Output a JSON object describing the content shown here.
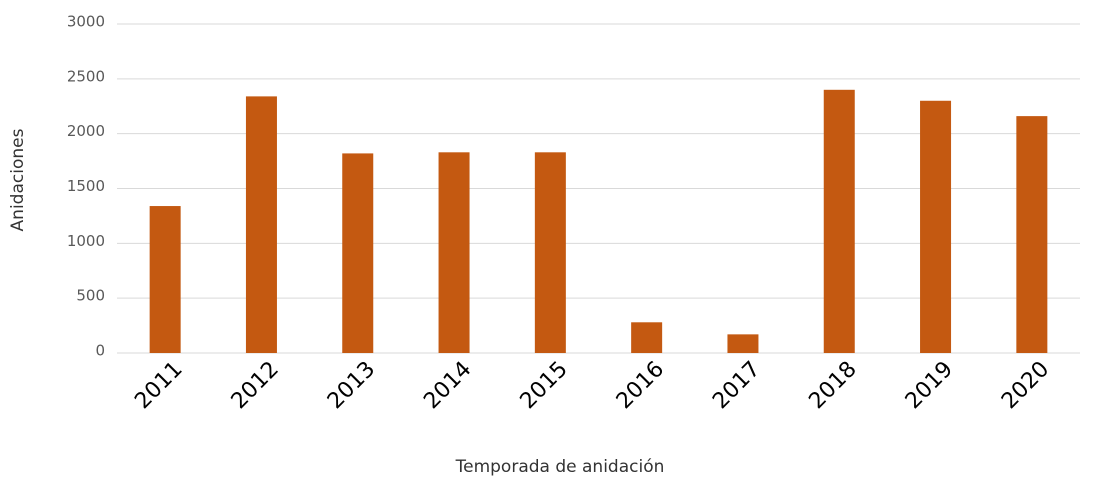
{
  "chart_data": {
    "type": "bar",
    "categories": [
      "2011",
      "2012",
      "2013",
      "2014",
      "2015",
      "2016",
      "2017",
      "2018",
      "2019",
      "2020"
    ],
    "values": [
      1340,
      2340,
      1820,
      1830,
      1830,
      280,
      170,
      2400,
      2300,
      2160
    ],
    "color": "#c45911",
    "ylim": [
      0,
      3000
    ],
    "yticks": [
      0,
      500,
      1000,
      1500,
      2000,
      2500,
      3000
    ],
    "grid": true,
    "xlabel": "Temporada de anidación",
    "ylabel": "Anidaciones"
  }
}
